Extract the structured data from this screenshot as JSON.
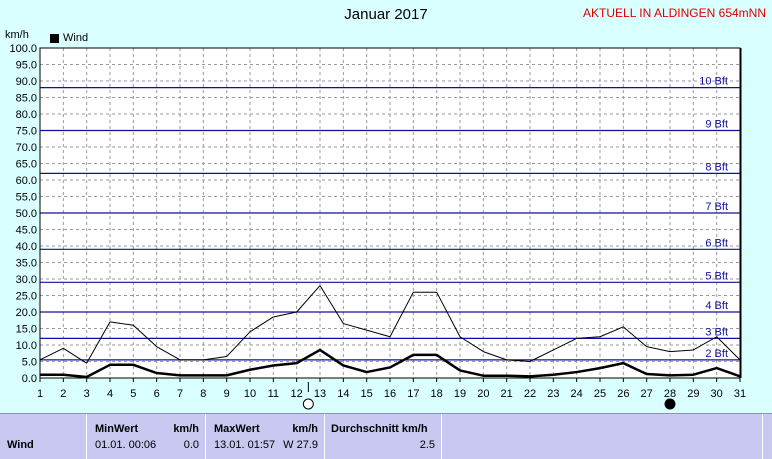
{
  "header": {
    "title": "Januar 2017",
    "station": "AKTUELL IN ALDINGEN 654mNN",
    "unit": "km/h"
  },
  "legend": {
    "series_name": "Wind",
    "color": "#000000"
  },
  "chart_data": {
    "type": "line",
    "title": "Januar 2017",
    "ylabel": "km/h",
    "xlabel": "",
    "ylim": [
      0,
      100
    ],
    "yticks": [
      "0.0",
      "5.0",
      "10.0",
      "15.0",
      "20.0",
      "25.0",
      "30.0",
      "35.0",
      "40.0",
      "45.0",
      "50.0",
      "55.0",
      "60.0",
      "65.0",
      "70.0",
      "75.0",
      "80.0",
      "85.0",
      "90.0",
      "95.0",
      "100.0"
    ],
    "x": [
      1,
      2,
      3,
      4,
      5,
      6,
      7,
      8,
      9,
      10,
      11,
      12,
      13,
      14,
      15,
      16,
      17,
      18,
      19,
      20,
      21,
      22,
      23,
      24,
      25,
      26,
      27,
      28,
      29,
      30,
      31
    ],
    "series": [
      {
        "name": "Wind",
        "color": "#000000",
        "style": "thick",
        "values": [
          1.0,
          1.0,
          0.3,
          4.0,
          4.0,
          1.5,
          0.8,
          0.8,
          0.8,
          2.5,
          3.8,
          4.5,
          8.5,
          3.8,
          1.8,
          3.2,
          7.0,
          7.0,
          2.3,
          0.7,
          0.7,
          0.5,
          1.0,
          1.8,
          3.0,
          4.5,
          1.2,
          0.8,
          1.0,
          3.0,
          0.5
        ]
      },
      {
        "color": "#000000",
        "style": "thin",
        "values": [
          5.5,
          9.0,
          4.5,
          17.0,
          16.0,
          9.5,
          5.5,
          5.5,
          6.5,
          14.0,
          18.5,
          20.0,
          28.0,
          16.5,
          14.5,
          12.5,
          26.0,
          26.0,
          12.5,
          8.0,
          5.5,
          5.0,
          8.5,
          12.0,
          12.5,
          15.5,
          9.5,
          8.0,
          8.5,
          12.5,
          5.5
        ]
      }
    ],
    "beaufort": [
      {
        "label": "2 Bft",
        "value": 5.5
      },
      {
        "label": "3 Bft",
        "value": 12.0
      },
      {
        "label": "4 Bft",
        "value": 20.0
      },
      {
        "label": "5 Bft",
        "value": 29.0
      },
      {
        "label": "6 Bft",
        "value": 39.0
      },
      {
        "label": "7 Bft",
        "value": 50.0
      },
      {
        "label": "8 Bft",
        "value": 62.0
      },
      {
        "label": "9 Bft",
        "value": 75.0
      },
      {
        "label": "10 Bft",
        "value": 88.0
      }
    ],
    "grid": true
  },
  "stats": {
    "row_label": "Wind",
    "min_header": "MinWert",
    "min_unit": "km/h",
    "min_time": "01.01.  00:06",
    "min_value": "0.0",
    "max_header": "MaxWert",
    "max_unit": "km/h",
    "max_time": "13.01.  01:57",
    "max_value": "W 27.9",
    "avg_header": "Durchschnitt km/h",
    "avg_value": "2.5"
  }
}
